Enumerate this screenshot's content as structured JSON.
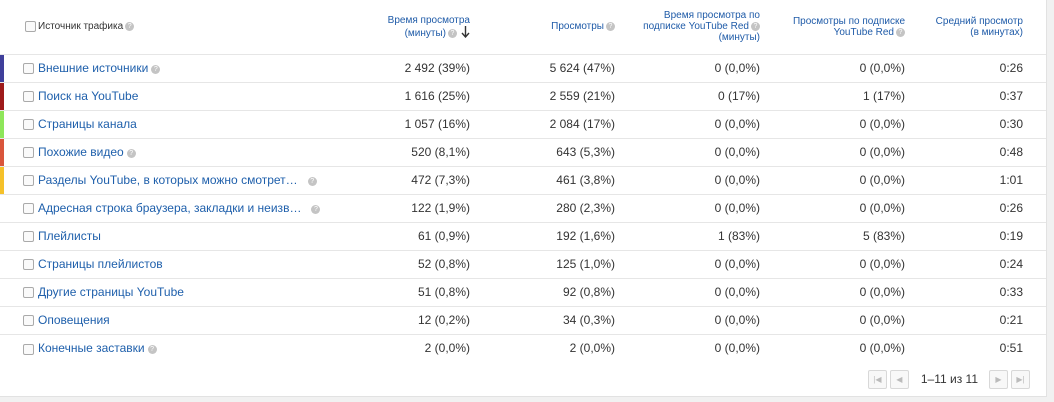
{
  "header": {
    "source": "Источник трафика",
    "watch_time": [
      "Время просмотра",
      "(минуты)"
    ],
    "views": "Просмотры",
    "red_watch_time": [
      "Время просмотра по",
      "подписке YouTube Red",
      "(минуты)"
    ],
    "red_views": [
      "Просмотры по подписке",
      "YouTube Red"
    ],
    "avg_view": [
      "Средний просмотр",
      "(в минутах)"
    ]
  },
  "rows": [
    {
      "name": "Внешние источники",
      "help": true,
      "far": false,
      "color": "#3f3f9b",
      "watch": "2 492",
      "watch_pct": "(39%)",
      "views": "5 624",
      "views_pct": "(47%)",
      "red_watch": "0",
      "red_watch_pct": "(0,0%)",
      "red_views": "0",
      "red_views_pct": "(0,0%)",
      "avg": "0:26"
    },
    {
      "name": "Поиск на YouTube",
      "help": false,
      "far": false,
      "color": "#9e1a1a",
      "watch": "1 616",
      "watch_pct": "(25%)",
      "views": "2 559",
      "views_pct": "(21%)",
      "red_watch": "0",
      "red_watch_pct": "(17%)",
      "red_views": "1",
      "red_views_pct": "(17%)",
      "avg": "0:37"
    },
    {
      "name": "Страницы канала",
      "help": false,
      "far": false,
      "color": "#8ee65a",
      "watch": "1 057",
      "watch_pct": "(16%)",
      "views": "2 084",
      "views_pct": "(17%)",
      "red_watch": "0",
      "red_watch_pct": "(0,0%)",
      "red_views": "0",
      "red_views_pct": "(0,0%)",
      "avg": "0:30"
    },
    {
      "name": "Похожие видео",
      "help": true,
      "far": false,
      "color": "#d9553b",
      "watch": "520",
      "watch_pct": "(8,1%)",
      "views": "643",
      "views_pct": "(5,3%)",
      "red_watch": "0",
      "red_watch_pct": "(0,0%)",
      "red_views": "0",
      "red_views_pct": "(0,0%)",
      "avg": "0:48"
    },
    {
      "name": "Разделы YouTube, в которых можно смотрет…",
      "help": true,
      "far": true,
      "color": "#f5c12a",
      "watch": "472",
      "watch_pct": "(7,3%)",
      "views": "461",
      "views_pct": "(3,8%)",
      "red_watch": "0",
      "red_watch_pct": "(0,0%)",
      "red_views": "0",
      "red_views_pct": "(0,0%)",
      "avg": "1:01"
    },
    {
      "name": "Адресная строка браузера, закладки и неизв…",
      "help": true,
      "far": true,
      "color": "",
      "watch": "122",
      "watch_pct": "(1,9%)",
      "views": "280",
      "views_pct": "(2,3%)",
      "red_watch": "0",
      "red_watch_pct": "(0,0%)",
      "red_views": "0",
      "red_views_pct": "(0,0%)",
      "avg": "0:26"
    },
    {
      "name": "Плейлисты",
      "help": false,
      "far": false,
      "color": "",
      "watch": "61",
      "watch_pct": "(0,9%)",
      "views": "192",
      "views_pct": "(1,6%)",
      "red_watch": "1",
      "red_watch_pct": "(83%)",
      "red_views": "5",
      "red_views_pct": "(83%)",
      "avg": "0:19"
    },
    {
      "name": "Страницы плейлистов",
      "help": false,
      "far": false,
      "color": "",
      "watch": "52",
      "watch_pct": "(0,8%)",
      "views": "125",
      "views_pct": "(1,0%)",
      "red_watch": "0",
      "red_watch_pct": "(0,0%)",
      "red_views": "0",
      "red_views_pct": "(0,0%)",
      "avg": "0:24"
    },
    {
      "name": "Другие страницы YouTube",
      "help": false,
      "far": false,
      "color": "",
      "watch": "51",
      "watch_pct": "(0,8%)",
      "views": "92",
      "views_pct": "(0,8%)",
      "red_watch": "0",
      "red_watch_pct": "(0,0%)",
      "red_views": "0",
      "red_views_pct": "(0,0%)",
      "avg": "0:33"
    },
    {
      "name": "Оповещения",
      "help": false,
      "far": false,
      "color": "",
      "watch": "12",
      "watch_pct": "(0,2%)",
      "views": "34",
      "views_pct": "(0,3%)",
      "red_watch": "0",
      "red_watch_pct": "(0,0%)",
      "red_views": "0",
      "red_views_pct": "(0,0%)",
      "avg": "0:21"
    },
    {
      "name": "Конечные заставки",
      "help": true,
      "far": false,
      "color": "",
      "watch": "2",
      "watch_pct": "(0,0%)",
      "views": "2",
      "views_pct": "(0,0%)",
      "red_watch": "0",
      "red_watch_pct": "(0,0%)",
      "red_views": "0",
      "red_views_pct": "(0,0%)",
      "avg": "0:51"
    }
  ],
  "pager": {
    "info": "1–11 из 11"
  }
}
